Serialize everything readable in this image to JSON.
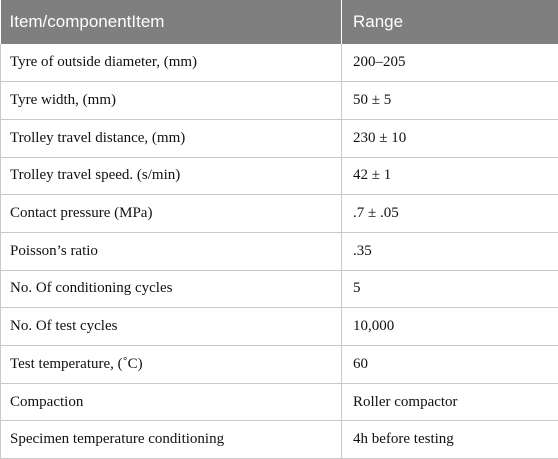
{
  "table": {
    "headers": [
      "Item/componentItem",
      "Range"
    ],
    "rows": [
      [
        "Tyre of outside diameter, (mm)",
        "200–205"
      ],
      [
        "Tyre width, (mm)",
        "50 ± 5"
      ],
      [
        "Trolley travel distance, (mm)",
        "230 ± 10"
      ],
      [
        "Trolley travel speed. (s/min)",
        "42 ± 1"
      ],
      [
        "Contact pressure (MPa)",
        ".7 ± .05"
      ],
      [
        "Poisson’s ratio",
        ".35"
      ],
      [
        "No. Of conditioning cycles",
        "5"
      ],
      [
        "No. Of test cycles",
        "10,000"
      ],
      [
        "Test temperature, (˚C)",
        "60"
      ],
      [
        "Compaction",
        "Roller compactor"
      ],
      [
        "Specimen temperature conditioning",
        "4h before testing"
      ]
    ]
  },
  "colors": {
    "header_bg": "#7f7f7f",
    "header_text": "#ffffff",
    "grid": "#c9c9c9"
  }
}
